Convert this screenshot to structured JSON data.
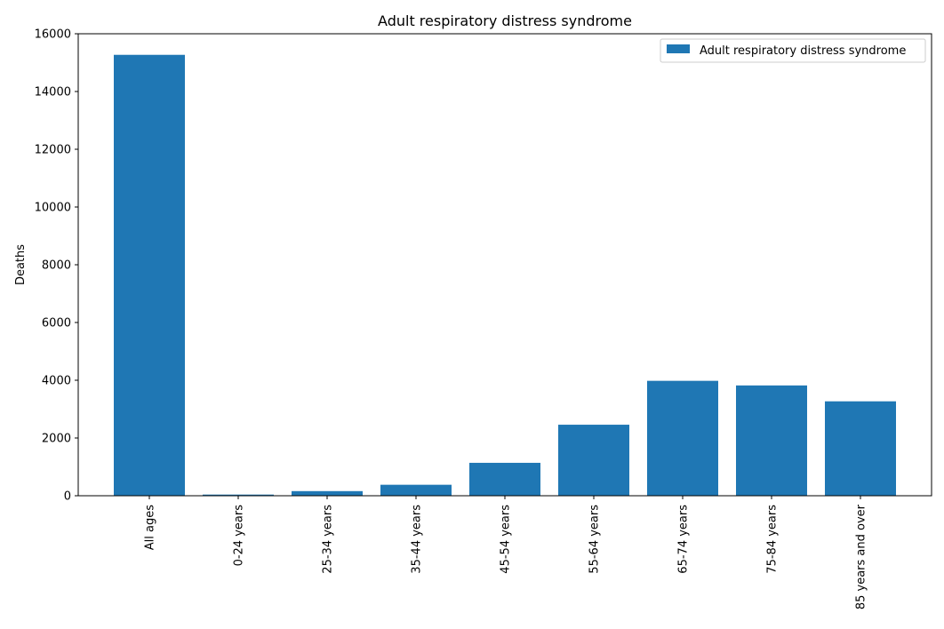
{
  "chart_data": {
    "type": "bar",
    "title": "Adult respiratory distress syndrome",
    "xlabel": "",
    "ylabel": "Deaths",
    "categories": [
      "All ages",
      "0-24 years",
      "25-34 years",
      "35-44 years",
      "45-54 years",
      "55-64 years",
      "65-74 years",
      "75-84 years",
      "85 years and over"
    ],
    "series": [
      {
        "name": "Adult respiratory distress syndrome",
        "values": [
          15270,
          40,
          160,
          380,
          1140,
          2460,
          3980,
          3820,
          3270
        ],
        "color": "#1f77b4"
      }
    ],
    "ylim": [
      0,
      16000
    ],
    "yticks": [
      0,
      2000,
      4000,
      6000,
      8000,
      10000,
      12000,
      14000,
      16000
    ],
    "grid": false,
    "legend_position": "top-right"
  }
}
